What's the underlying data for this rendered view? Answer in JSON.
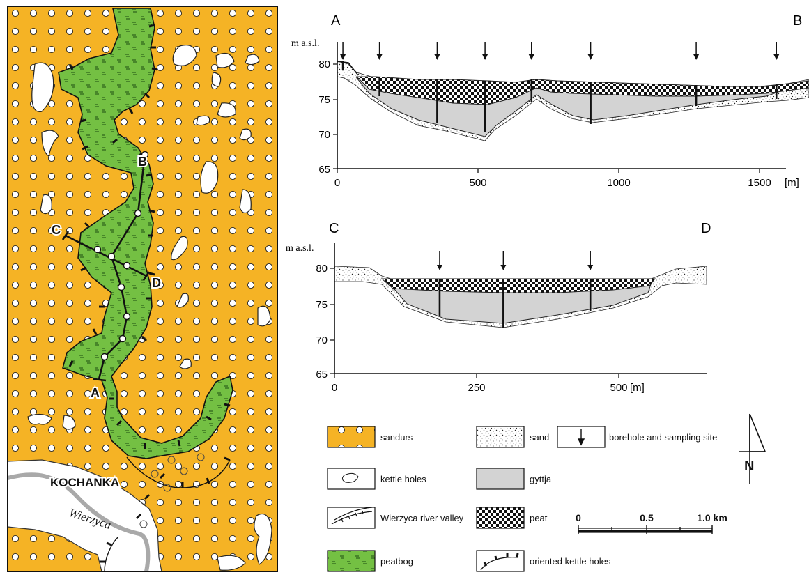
{
  "map": {
    "labels": {
      "a": "A",
      "b": "B",
      "c": "C",
      "d": "D"
    },
    "town": "KOCHANKA",
    "river": "Wierzyca"
  },
  "sections": [
    {
      "id": "AB",
      "start_label": "A",
      "end_label": "B",
      "ylabel": "m a.s.l.",
      "yticks": [
        "80",
        "75",
        "70",
        "65"
      ],
      "xticks": [
        "0",
        "500",
        "1000",
        "1500"
      ],
      "x_unit": "[m]",
      "boreholes_m": [
        20,
        150,
        355,
        525,
        690,
        900,
        1275,
        1560
      ]
    },
    {
      "id": "CD",
      "start_label": "C",
      "end_label": "D",
      "ylabel": "m a.s.l.",
      "yticks": [
        "80",
        "75",
        "70",
        "65"
      ],
      "xticks": [
        "0",
        "250",
        "500"
      ],
      "x_unit": "[m]",
      "boreholes_m": [
        185,
        297,
        450
      ]
    }
  ],
  "legend": {
    "sandurs": "sandurs",
    "kettle": "kettle holes",
    "valley": "Wierzyca river valley",
    "peatbog": "peatbog",
    "sand": "sand",
    "gyttja": "gyttja",
    "peat": "peat",
    "oriented": "oriented kettle holes",
    "borehole": "borehole and sampling site"
  },
  "scale": {
    "t0": "0",
    "t1": "0.5",
    "t2": "1.0 km"
  },
  "north": "N",
  "colors": {
    "sandurs": "#f5b325",
    "peatbog": "#74c043",
    "gyttja": "#d3d3d3",
    "river": "#a9a9a9"
  }
}
